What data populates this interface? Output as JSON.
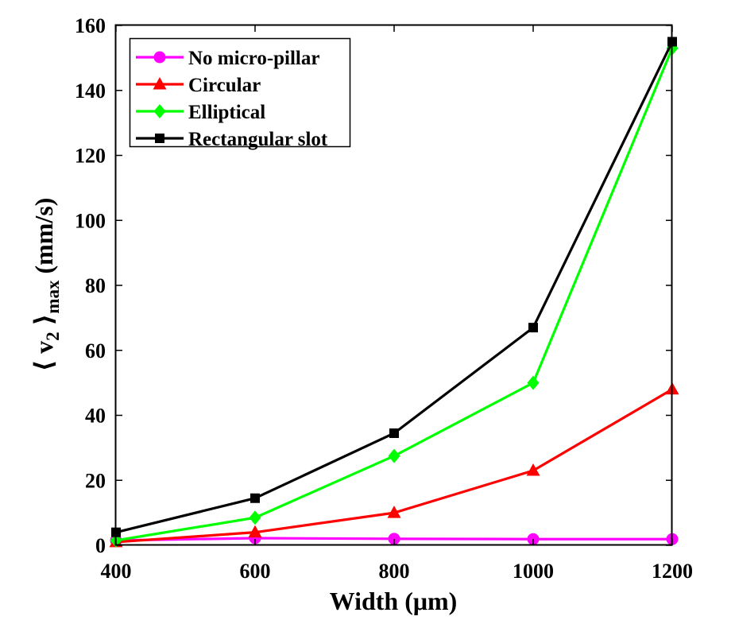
{
  "chart_data": {
    "type": "line",
    "title": "",
    "xlabel": "Width (μm)",
    "ylabel_parts": {
      "open": "⟨ v",
      "sub1": "2",
      "close": " ⟩",
      "sub2": "max",
      "unit": " (mm/s)"
    },
    "x": [
      400,
      600,
      800,
      1000,
      1200
    ],
    "x_ticks": [
      "400",
      "600",
      "800",
      "1000",
      "1200"
    ],
    "y_ticks": [
      "0",
      "20",
      "40",
      "60",
      "80",
      "100",
      "120",
      "140",
      "160"
    ],
    "xlim": [
      400,
      1200
    ],
    "ylim": [
      0,
      160
    ],
    "grid": false,
    "legend_position": "top-left",
    "series": [
      {
        "name": "No micro-pillar",
        "values": [
          1.5,
          2.2,
          2.0,
          1.9,
          1.9
        ],
        "color": "#ff00ff",
        "marker": "circle"
      },
      {
        "name": "Circular",
        "values": [
          1.0,
          4.0,
          10.0,
          23.0,
          48.0
        ],
        "color": "#ff0000",
        "marker": "triangle"
      },
      {
        "name": "Elliptical",
        "values": [
          1.5,
          8.5,
          27.5,
          50.0,
          153.0
        ],
        "color": "#00ff00",
        "marker": "diamond"
      },
      {
        "name": "Rectangular slot",
        "values": [
          4.0,
          14.5,
          34.5,
          67.0,
          155.0
        ],
        "color": "#000000",
        "marker": "square"
      }
    ]
  }
}
